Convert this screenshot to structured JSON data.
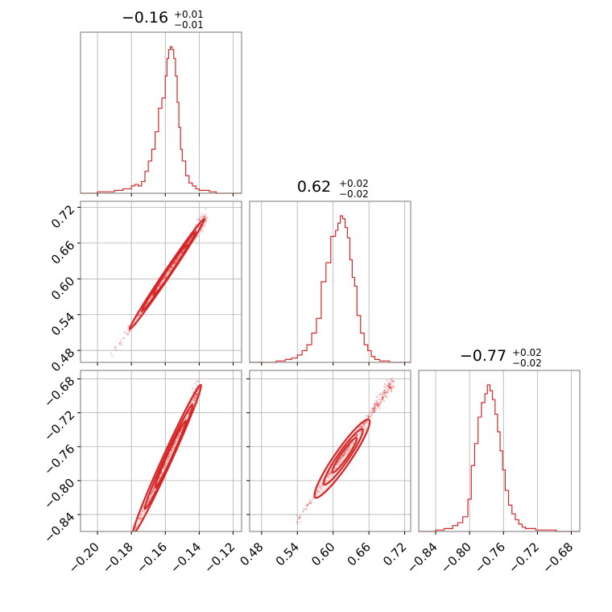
{
  "chart_data": {
    "type": "corner",
    "series_color": "#d62728",
    "grid": true,
    "parameters": [
      {
        "title": {
          "value": "−0.16",
          "plus": "+0.01",
          "minus": "−0.01"
        },
        "range": [
          -0.21,
          -0.115
        ],
        "ticks": [
          -0.2,
          -0.18,
          -0.16,
          -0.14,
          -0.12
        ],
        "tick_labels": [
          "−0.20",
          "−0.18",
          "−0.16",
          "−0.14",
          "−0.12"
        ],
        "histogram": {
          "bin_edges": [
            -0.21,
            -0.205,
            -0.2,
            -0.195,
            -0.19,
            -0.185,
            -0.18,
            -0.178,
            -0.176,
            -0.174,
            -0.172,
            -0.17,
            -0.168,
            -0.166,
            -0.164,
            -0.162,
            -0.16,
            -0.159,
            -0.158,
            -0.157,
            -0.156,
            -0.155,
            -0.154,
            -0.153,
            -0.152,
            -0.151,
            -0.15,
            -0.148,
            -0.146,
            -0.144,
            -0.142,
            -0.14,
            -0.137,
            -0.134,
            -0.13,
            -0.125,
            -0.12,
            -0.115
          ],
          "counts": [
            0,
            0,
            1,
            1,
            2,
            3,
            5,
            6,
            5,
            8,
            15,
            22,
            30,
            42,
            58,
            65,
            80,
            92,
            98,
            100,
            98,
            92,
            80,
            62,
            45,
            30,
            22,
            12,
            7,
            5,
            3,
            2,
            2,
            1,
            0,
            0,
            0
          ]
        }
      },
      {
        "title": {
          "value": "0.62",
          "plus": "+0.02",
          "minus": "−0.02"
        },
        "range": [
          0.46,
          0.73
        ],
        "ticks": [
          0.48,
          0.54,
          0.6,
          0.66,
          0.72
        ],
        "tick_labels": [
          "0.48",
          "0.54",
          "0.60",
          "0.66",
          "0.72"
        ],
        "histogram": {
          "bin_edges": [
            0.46,
            0.475,
            0.49,
            0.505,
            0.52,
            0.53,
            0.54,
            0.548,
            0.556,
            0.564,
            0.572,
            0.58,
            0.588,
            0.596,
            0.604,
            0.608,
            0.612,
            0.616,
            0.62,
            0.624,
            0.628,
            0.632,
            0.636,
            0.64,
            0.646,
            0.652,
            0.658,
            0.664,
            0.67,
            0.678,
            0.686,
            0.694,
            0.702,
            0.715,
            0.73
          ],
          "counts": [
            0,
            0,
            0,
            1,
            2,
            3,
            5,
            8,
            12,
            20,
            30,
            55,
            68,
            86,
            90,
            95,
            100,
            98,
            92,
            85,
            70,
            58,
            52,
            32,
            20,
            12,
            8,
            4,
            2,
            1,
            1,
            0,
            0,
            0
          ]
        }
      },
      {
        "title": {
          "value": "−0.77",
          "plus": "+0.02",
          "minus": "−0.02"
        },
        "range": [
          -0.86,
          -0.67
        ],
        "ticks": [
          -0.84,
          -0.8,
          -0.76,
          -0.72,
          -0.68
        ],
        "tick_labels": [
          "−0.84",
          "−0.80",
          "−0.76",
          "−0.72",
          "−0.68"
        ],
        "histogram": {
          "bin_edges": [
            -0.86,
            -0.85,
            -0.84,
            -0.83,
            -0.82,
            -0.814,
            -0.808,
            -0.802,
            -0.798,
            -0.794,
            -0.79,
            -0.786,
            -0.782,
            -0.779,
            -0.776,
            -0.773,
            -0.77,
            -0.767,
            -0.764,
            -0.761,
            -0.758,
            -0.754,
            -0.75,
            -0.746,
            -0.742,
            -0.738,
            -0.734,
            -0.728,
            -0.722,
            -0.714,
            -0.706,
            -0.698,
            -0.69,
            -0.68,
            -0.67
          ],
          "counts": [
            0,
            0,
            1,
            2,
            4,
            6,
            10,
            22,
            45,
            60,
            78,
            88,
            94,
            100,
            96,
            90,
            80,
            68,
            55,
            42,
            28,
            18,
            12,
            8,
            5,
            3,
            2,
            2,
            1,
            1,
            1,
            0,
            0,
            0
          ]
        }
      }
    ],
    "pairs": [
      {
        "x_param": 0,
        "y_param": 1,
        "contours": [
          {
            "center": [
              -0.159,
              0.608
            ],
            "angle_deg": 42,
            "rx": 0.022,
            "ry": 0.0035
          },
          {
            "center": [
              -0.158,
              0.612
            ],
            "angle_deg": 42,
            "rx": 0.016,
            "ry": 0.0025
          },
          {
            "center": [
              -0.157,
              0.615
            ],
            "angle_deg": 42,
            "rx": 0.01,
            "ry": 0.0016
          }
        ],
        "trend": {
          "slope": 4.2,
          "intercept": 1.276,
          "x_range": [
            -0.192,
            -0.136
          ]
        }
      },
      {
        "x_param": 0,
        "y_param": 2,
        "contours": [
          {
            "center": [
              -0.159,
              -0.775
            ],
            "angle_deg": 40,
            "rx": 0.02,
            "ry": 0.0035
          },
          {
            "center": [
              -0.158,
              -0.772
            ],
            "angle_deg": 40,
            "rx": 0.014,
            "ry": 0.0025
          },
          {
            "center": [
              -0.157,
              -0.769
            ],
            "angle_deg": 40,
            "rx": 0.009,
            "ry": 0.0016
          }
        ],
        "trend": {
          "slope": 4.4,
          "intercept": -0.075,
          "x_range": [
            -0.192,
            -0.14
          ]
        }
      },
      {
        "x_param": 1,
        "y_param": 2,
        "contours": [
          {
            "center": [
              0.615,
              -0.774
            ],
            "angle_deg": 38,
            "rx": 0.045,
            "ry": 0.006
          },
          {
            "center": [
              0.617,
              -0.772
            ],
            "angle_deg": 38,
            "rx": 0.032,
            "ry": 0.004
          },
          {
            "center": [
              0.619,
              -0.77
            ],
            "angle_deg": 38,
            "rx": 0.02,
            "ry": 0.0025
          }
        ],
        "trend": {
          "slope": 1.02,
          "intercept": -1.398,
          "x_range": [
            0.53,
            0.7
          ]
        }
      }
    ]
  }
}
